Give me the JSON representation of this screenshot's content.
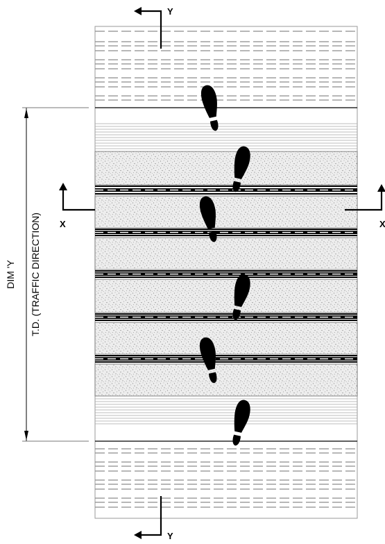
{
  "section_marks": {
    "top": "Y",
    "bottom": "Y",
    "left": "X",
    "right": "X"
  },
  "dimension": {
    "line1": "DIM 'Y",
    "line2": "T.D. (TRAFFIC DIRECTION)"
  },
  "colors": {
    "ink": "#000000",
    "dash_gray": "#9a9a9a",
    "fine_line_gray": "#a8a8a8",
    "speckle_fill": "#d8d8d8"
  },
  "icons": [
    "section-arrow-icon",
    "footprint-icon"
  ]
}
